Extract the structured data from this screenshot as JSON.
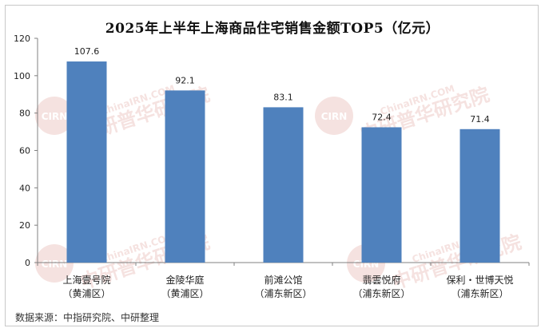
{
  "chart_data": {
    "type": "bar",
    "title": "2025年上半年上海商品住宅销售金额TOP5（亿元）",
    "categories": [
      [
        "上海壹号院",
        "（黄浦区）"
      ],
      [
        "金陵华庭",
        "（黄浦区）"
      ],
      [
        "前滩公馆",
        "（浦东新区）"
      ],
      [
        "翡雲悦府",
        "（浦东新区）"
      ],
      [
        "保利・世博天悦",
        "（浦东新区）"
      ]
    ],
    "values": [
      107.6,
      92.1,
      83.1,
      72.4,
      71.4
    ],
    "value_labels": [
      "107.6",
      "92.1",
      "83.1",
      "72.4",
      "71.4"
    ],
    "ylim": [
      0,
      120
    ],
    "yticks": [
      0,
      20,
      40,
      60,
      80,
      100,
      120
    ],
    "bar_color": "#4f81bd",
    "grid": false,
    "xlabel": "",
    "ylabel": ""
  },
  "source": "数据来源：中指研究院、中研整理",
  "watermark": {
    "logo_text": "CIRN",
    "name_text": "中研普华研究院",
    "url_text": "ChinaIRN.COM",
    "color": "#c0392b"
  }
}
